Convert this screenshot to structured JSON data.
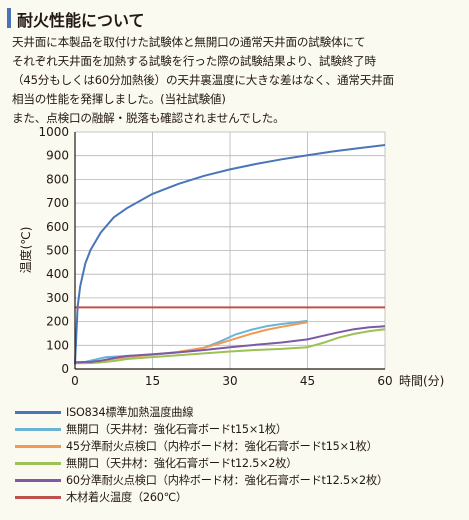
{
  "heading": {
    "title": "耐火性能について"
  },
  "paragraph": [
    "天井面に本製品を取付けた試験体と無開口の通常天井面の試験体にて",
    "それぞれ天井面を加熱する試験を行った際の試験結果より、試験終了時",
    "（45分もしくは60分加熱後）の天井裏温度に大きな差はなく、通常天井面",
    "相当の性能を発揮しました。(当社試験値)",
    "また、点検口の融解・脱落も確認されませんでした。"
  ],
  "chart_data": {
    "type": "line",
    "xlabel": "時間(分)",
    "ylabel": "温度(℃)",
    "xlim": [
      0,
      60
    ],
    "ylim": [
      0,
      1000
    ],
    "xticks": [
      0,
      15,
      30,
      45,
      60
    ],
    "yticks": [
      0,
      100,
      200,
      300,
      400,
      500,
      600,
      700,
      800,
      900,
      1000
    ],
    "grid": true,
    "legend_position": "bottom",
    "series": [
      {
        "name": "ISO834標準加熱温度曲線",
        "color": "#4a76b8",
        "x": [
          0,
          0.5,
          1,
          2,
          3,
          5,
          7.5,
          10,
          15,
          20,
          25,
          30,
          35,
          40,
          45,
          50,
          55,
          60
        ],
        "y": [
          20,
          261,
          349,
          445,
          502,
          576,
          640,
          678,
          739,
          781,
          815,
          842,
          865,
          885,
          902,
          918,
          932,
          945
        ]
      },
      {
        "name": "無開口（天井材：強化石膏ボードt15×1枚）",
        "color": "#6cb3d6",
        "x": [
          0,
          2,
          4,
          6,
          10,
          15,
          20,
          25,
          28,
          31,
          34,
          37,
          40,
          43,
          45
        ],
        "y": [
          28,
          30,
          40,
          50,
          55,
          60,
          70,
          90,
          115,
          145,
          165,
          180,
          190,
          198,
          203
        ]
      },
      {
        "name": "45分準耐火点検口（内枠ボード材：強化石膏ボードt15×1枚）",
        "color": "#ef9a55",
        "x": [
          0,
          2,
          4,
          6,
          10,
          15,
          20,
          25,
          28,
          31,
          34,
          37,
          40,
          43,
          45
        ],
        "y": [
          25,
          25,
          30,
          38,
          50,
          60,
          72,
          90,
          108,
          128,
          148,
          165,
          178,
          190,
          197
        ]
      },
      {
        "name": "無開口（天井材：強化石膏ボードt12.5×2枚）",
        "color": "#9cc154",
        "x": [
          0,
          3,
          5,
          8,
          10,
          15,
          20,
          25,
          30,
          35,
          40,
          45,
          48,
          51,
          54,
          57,
          60
        ],
        "y": [
          25,
          25,
          28,
          35,
          42,
          50,
          58,
          66,
          74,
          80,
          85,
          92,
          110,
          132,
          148,
          160,
          168
        ]
      },
      {
        "name": "60分準耐火点検口（内枠ボード材：強化石膏ボードt12.5×2枚）",
        "color": "#7c5aa6",
        "x": [
          0,
          3,
          5,
          8,
          10,
          15,
          20,
          25,
          30,
          35,
          40,
          45,
          48,
          51,
          54,
          57,
          60
        ],
        "y": [
          28,
          30,
          35,
          48,
          55,
          62,
          70,
          80,
          92,
          102,
          112,
          125,
          140,
          155,
          168,
          176,
          180
        ]
      },
      {
        "name": "木材着火温度（260℃）",
        "color": "#c0504d",
        "x": [
          0,
          60
        ],
        "y": [
          260,
          260
        ]
      }
    ]
  }
}
